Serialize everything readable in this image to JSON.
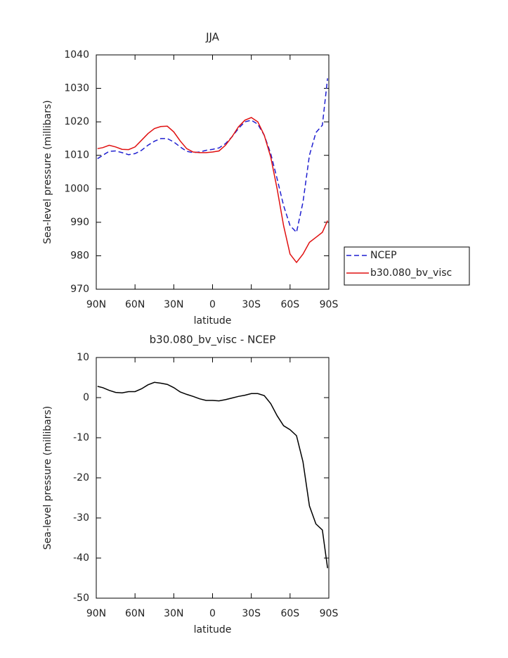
{
  "chart_data": [
    {
      "type": "line",
      "title": "JJA",
      "x_label": "latitude",
      "y_label": "Sea-level pressure (millibars)",
      "x": [
        89,
        85,
        80,
        75,
        70,
        65,
        60,
        55,
        50,
        45,
        40,
        35,
        30,
        25,
        20,
        15,
        10,
        5,
        0,
        -5,
        -10,
        -15,
        -20,
        -25,
        -30,
        -35,
        -40,
        -45,
        -50,
        -55,
        -60,
        -65,
        -70,
        -75,
        -80,
        -85,
        -89
      ],
      "series": [
        {
          "name": "NCEP",
          "color": "#1f1fd0",
          "linestyle": "dashed",
          "values": [
            1009,
            1010,
            1011.2,
            1011.3,
            1010.8,
            1010.2,
            1010.5,
            1011.5,
            1013,
            1014.2,
            1015,
            1015,
            1014,
            1012.5,
            1011.2,
            1010.8,
            1011,
            1011.5,
            1011.8,
            1012.2,
            1013.5,
            1015.5,
            1018,
            1020,
            1020.5,
            1019.3,
            1016,
            1010.5,
            1003,
            995,
            989,
            987,
            996,
            1010,
            1016.8,
            1019,
            1033
          ]
        },
        {
          "name": "b30.080_bv_visc",
          "color": "#e01010",
          "linestyle": "solid",
          "values": [
            1012,
            1012.3,
            1013,
            1012.5,
            1011.8,
            1011.7,
            1012.5,
            1014.5,
            1016.5,
            1018,
            1018.6,
            1018.7,
            1017,
            1014.3,
            1012,
            1011,
            1010.8,
            1010.8,
            1011,
            1011.3,
            1013,
            1015.5,
            1018.5,
            1020.5,
            1021.3,
            1020,
            1016,
            1009.5,
            1000,
            989,
            980.5,
            978,
            980.5,
            984,
            985.5,
            987,
            990.5
          ]
        }
      ],
      "xlim": [
        90,
        -90
      ],
      "xticks": [
        {
          "value": 90,
          "label": "90N"
        },
        {
          "value": 60,
          "label": "60N"
        },
        {
          "value": 30,
          "label": "30N"
        },
        0,
        {
          "value": -30,
          "label": "30S"
        },
        {
          "value": -60,
          "label": "60S"
        },
        {
          "value": -90,
          "label": "90S"
        }
      ],
      "ylim": [
        970,
        1040
      ],
      "yticks": [
        970,
        980,
        990,
        1000,
        1010,
        1020,
        1030,
        1040
      ],
      "legend": "outside-right",
      "grid": false
    },
    {
      "type": "line",
      "title": "b30.080_bv_visc - NCEP",
      "x_label": "latitude",
      "y_label": "Sea-level pressure (millibars)",
      "x": [
        89,
        85,
        80,
        75,
        70,
        65,
        60,
        55,
        50,
        45,
        40,
        35,
        30,
        25,
        20,
        15,
        10,
        5,
        0,
        -5,
        -10,
        -15,
        -20,
        -25,
        -30,
        -35,
        -40,
        -45,
        -50,
        -55,
        -60,
        -65,
        -70,
        -75,
        -80,
        -85,
        -89
      ],
      "color": "#000000",
      "linestyle": "solid",
      "values": [
        2.8,
        2.5,
        1.8,
        1.3,
        1.2,
        1.5,
        1.5,
        2.2,
        3.2,
        3.8,
        3.6,
        3.3,
        2.5,
        1.4,
        0.8,
        0.3,
        -0.3,
        -0.7,
        -0.7,
        -0.8,
        -0.5,
        -0.1,
        0.3,
        0.6,
        1.0,
        1.0,
        0.5,
        -1.5,
        -4.5,
        -7,
        -8,
        -9.5,
        -16,
        -27,
        -31.5,
        -33,
        -42.5
      ],
      "xlim": [
        90,
        -90
      ],
      "xticks": [
        {
          "value": 90,
          "label": "90N"
        },
        {
          "value": 60,
          "label": "60N"
        },
        {
          "value": 30,
          "label": "30N"
        },
        0,
        {
          "value": -30,
          "label": "30S"
        },
        {
          "value": -60,
          "label": "60S"
        },
        {
          "value": -90,
          "label": "90S"
        }
      ],
      "ylim": [
        -50,
        10
      ],
      "yticks": [
        -50,
        -40,
        -30,
        -20,
        -10,
        0,
        10
      ],
      "grid": false
    }
  ]
}
